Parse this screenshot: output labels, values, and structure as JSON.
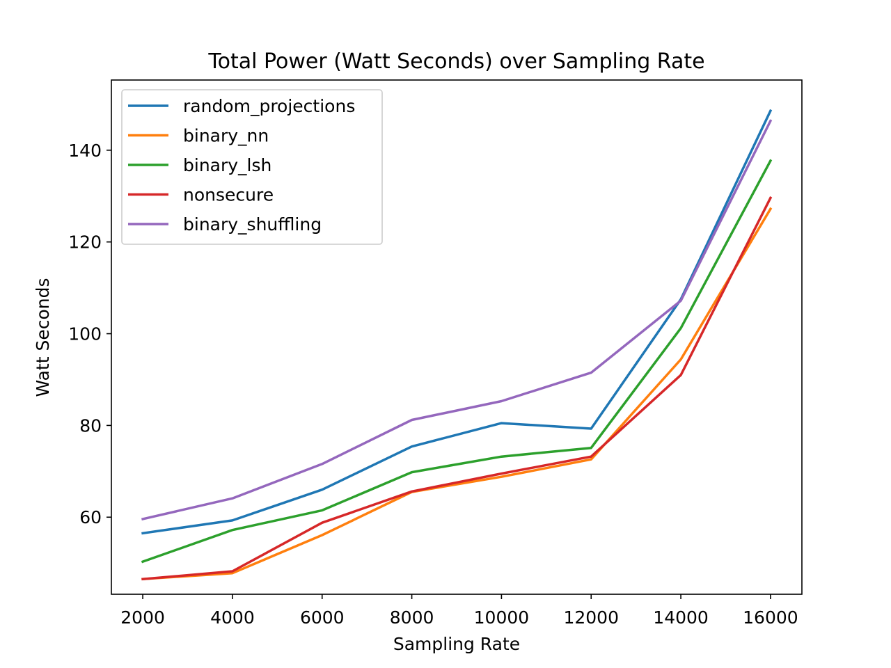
{
  "chart_data": {
    "type": "line",
    "title": "Total Power (Watt Seconds) over Sampling Rate",
    "xlabel": "Sampling Rate",
    "ylabel": "Watt Seconds",
    "x": [
      2000,
      4000,
      6000,
      8000,
      10000,
      12000,
      14000,
      16000
    ],
    "xlim": [
      1300,
      16700
    ],
    "ylim": [
      43.2,
      155.3
    ],
    "xticks": [
      "2000",
      "4000",
      "6000",
      "8000",
      "10000",
      "12000",
      "14000",
      "16000"
    ],
    "yticks": [
      "60",
      "80",
      "100",
      "120",
      "140"
    ],
    "grid": false,
    "legend_position": "upper left",
    "series": [
      {
        "name": "random_projections",
        "color": "#1f77b4",
        "values": [
          56.5,
          59.3,
          66.0,
          75.4,
          80.5,
          79.3,
          107.5,
          148.6
        ]
      },
      {
        "name": "binary_nn",
        "color": "#ff7f0e",
        "values": [
          46.5,
          47.8,
          56.1,
          65.5,
          68.8,
          72.6,
          94.4,
          127.2
        ]
      },
      {
        "name": "binary_lsh",
        "color": "#2ca02c",
        "values": [
          50.3,
          57.2,
          61.5,
          69.8,
          73.2,
          75.1,
          101.2,
          137.7
        ]
      },
      {
        "name": "nonsecure",
        "color": "#d62728",
        "values": [
          46.5,
          48.2,
          58.8,
          65.6,
          69.5,
          73.2,
          91.0,
          129.6
        ]
      },
      {
        "name": "binary_shuffling",
        "color": "#9467bd",
        "values": [
          59.6,
          64.1,
          71.6,
          81.2,
          85.3,
          91.5,
          107.2,
          146.4
        ]
      }
    ]
  }
}
